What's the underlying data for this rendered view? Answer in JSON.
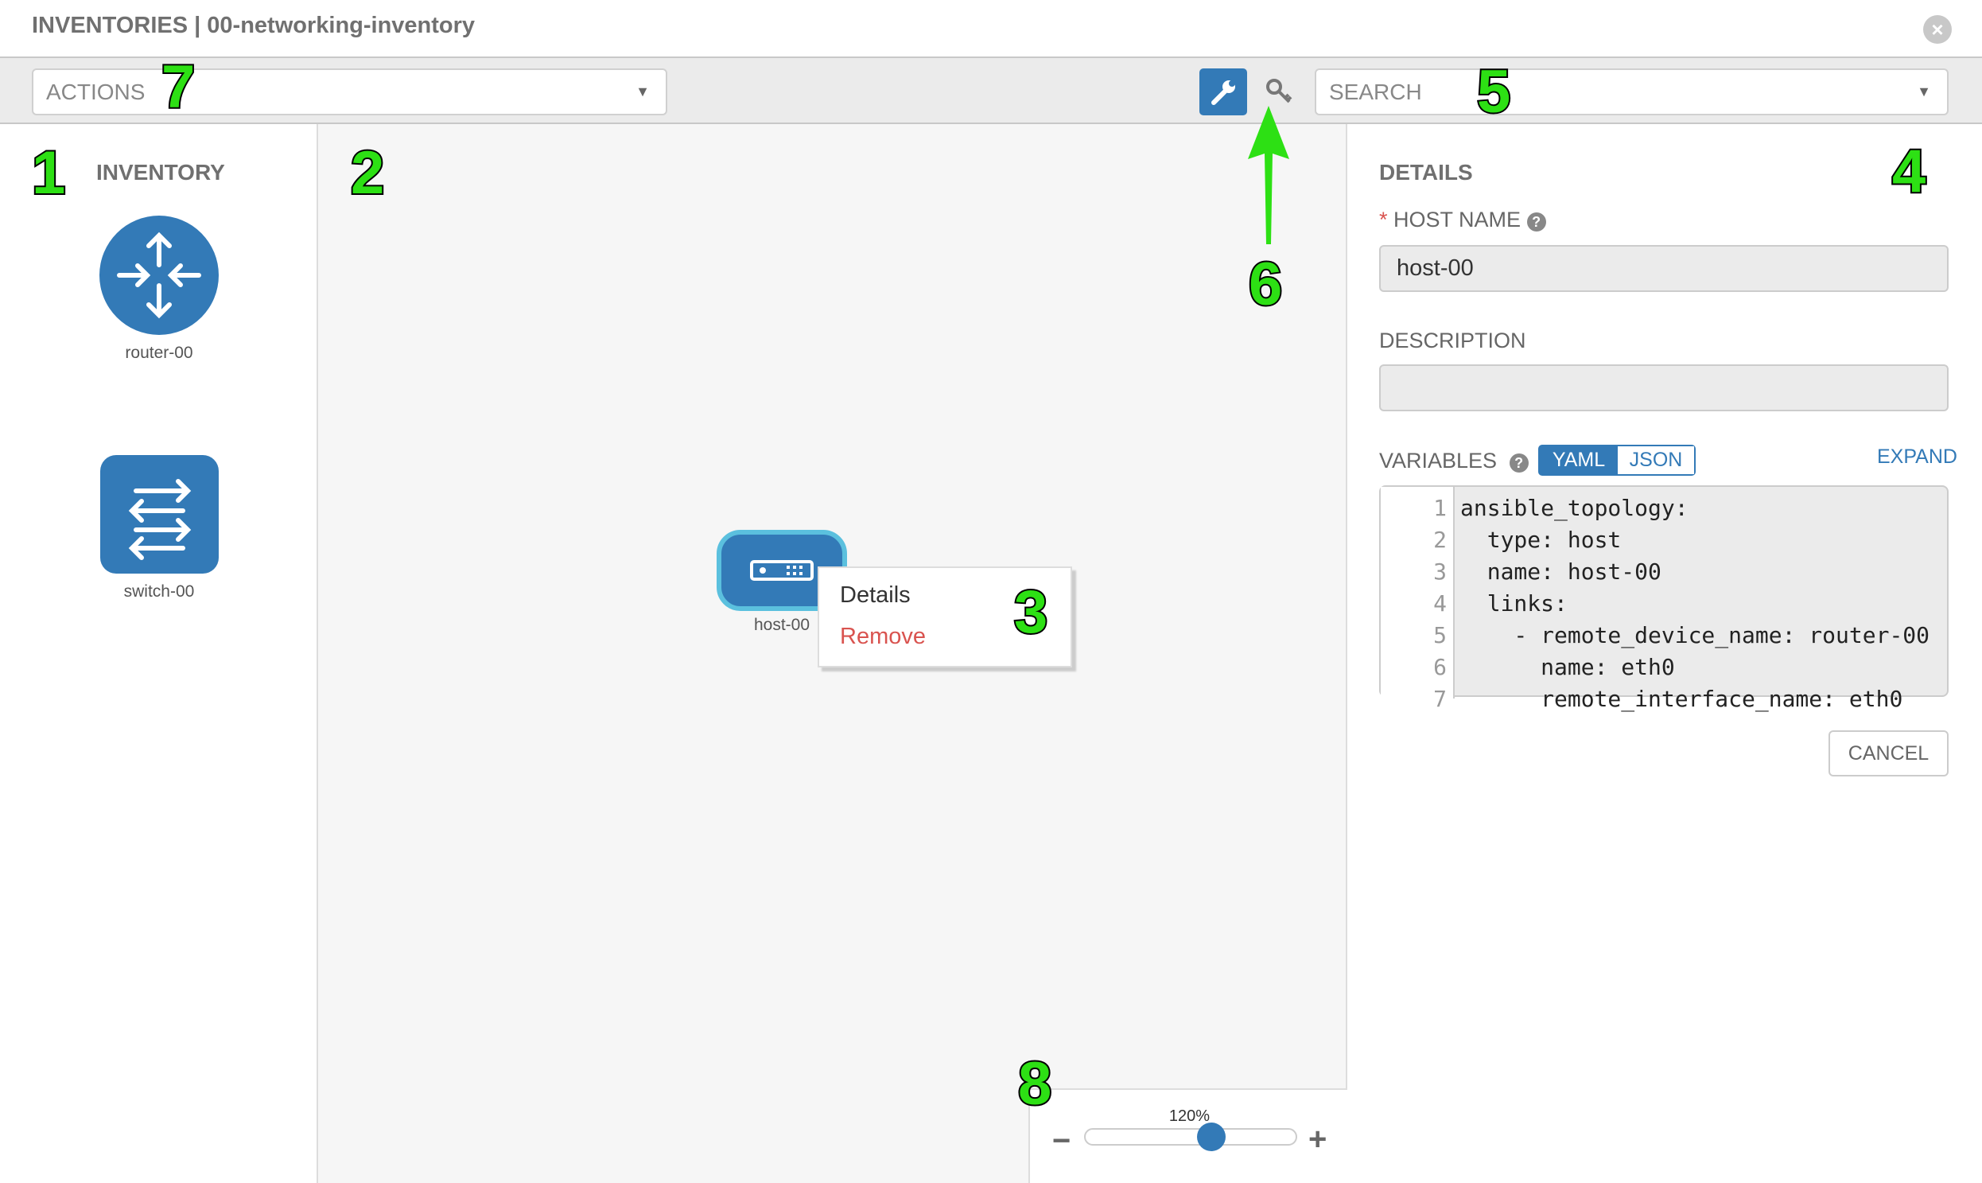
{
  "title": "INVENTORIES | 00-networking-inventory",
  "toolbar": {
    "actions_placeholder": "ACTIONS",
    "search_placeholder": "SEARCH",
    "active_mode": "wrench-icon",
    "other_mode": "key-icon"
  },
  "inventory": {
    "heading": "INVENTORY",
    "items": [
      {
        "label": "router-00",
        "icon": "router-icon"
      },
      {
        "label": "switch-00",
        "icon": "switch-icon"
      }
    ]
  },
  "canvas": {
    "node": {
      "label": "host-00",
      "icon": "host-icon"
    },
    "context_menu": {
      "details": "Details",
      "remove": "Remove"
    },
    "zoom": {
      "level": "120%",
      "percent": 120,
      "minus": "−",
      "plus": "+"
    }
  },
  "details": {
    "heading": "DETAILS",
    "required_mark": "*",
    "host_name_label": "HOST NAME",
    "host_name_value": "host-00",
    "description_label": "DESCRIPTION",
    "description_value": "",
    "variables_label": "VARIABLES",
    "yaml": "YAML",
    "json": "JSON",
    "expand": "EXPAND",
    "cancel": "CANCEL",
    "code": [
      "ansible_topology:",
      "  type: host",
      "  name: host-00",
      "  links:",
      "    - remote_device_name: router-00",
      "      name: eth0",
      "      remote_interface_name: eth0"
    ]
  },
  "annotations": [
    "1",
    "2",
    "3",
    "4",
    "5",
    "6",
    "7",
    "8"
  ],
  "colors": {
    "primary": "#337ab7",
    "node_highlight": "#5bc0de",
    "remove": "#d9534f",
    "annotation": "#2de014"
  }
}
